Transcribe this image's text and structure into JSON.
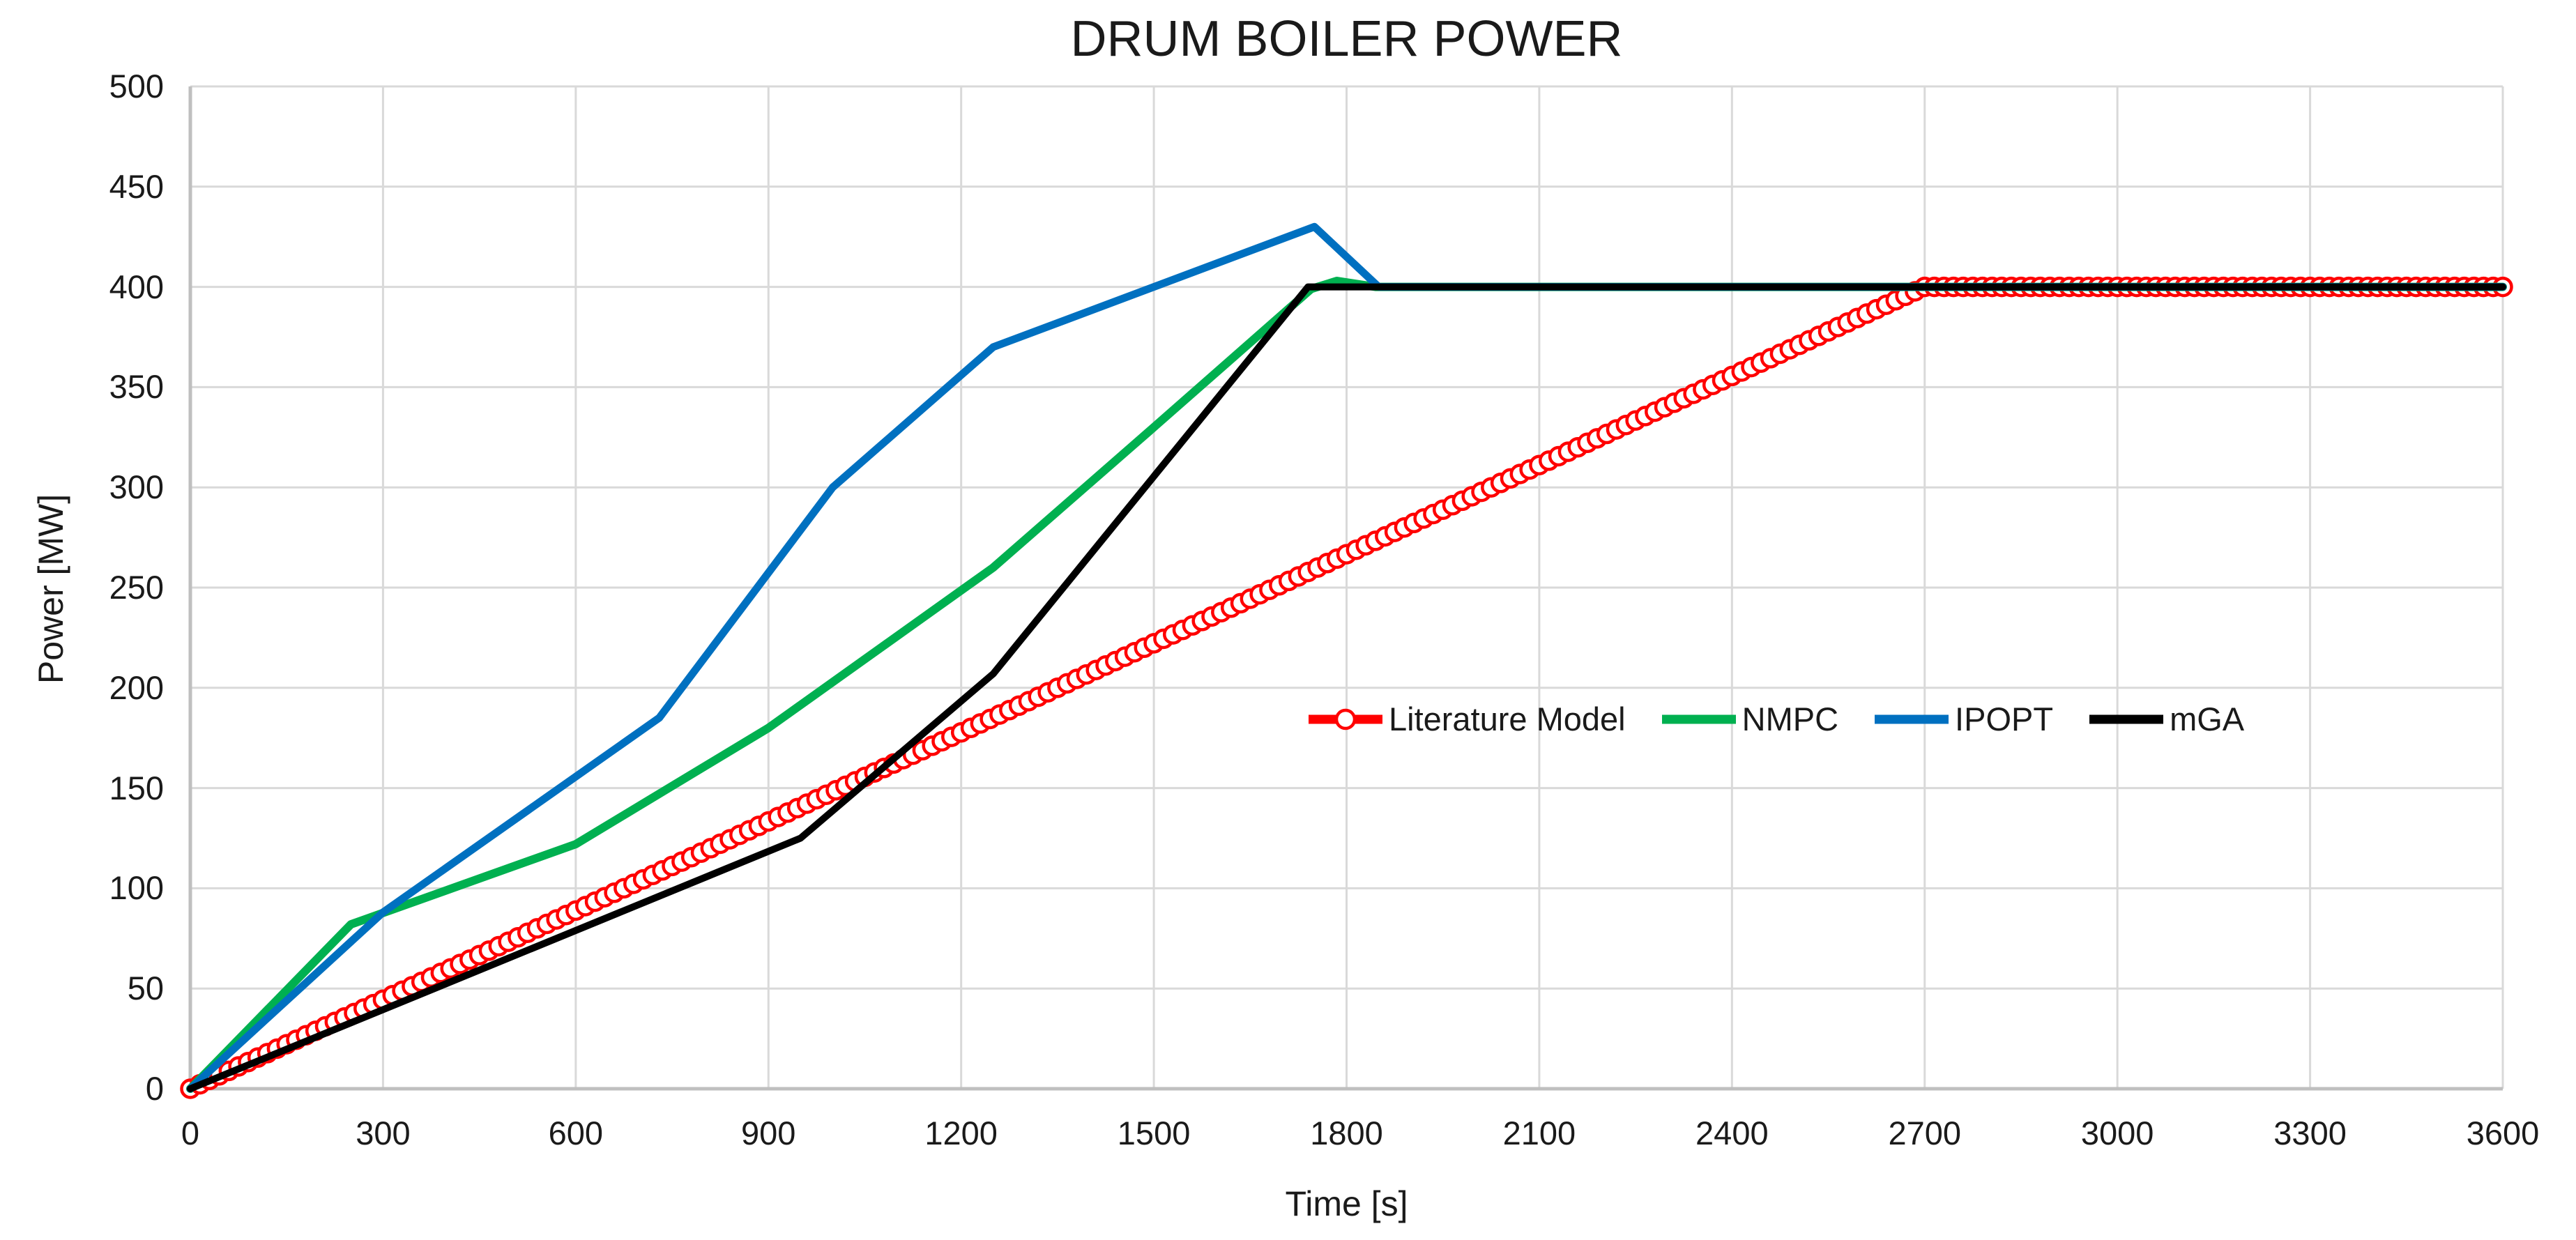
{
  "title": "DRUM BOILER POWER",
  "chart_data": {
    "type": "line",
    "title": "DRUM BOILER POWER",
    "xlabel": "Time [s]",
    "ylabel": "Power [MW]",
    "xlim": [
      0,
      3600
    ],
    "ylim": [
      0,
      500
    ],
    "x_ticks": [
      0,
      300,
      600,
      900,
      1200,
      1500,
      1800,
      2100,
      2400,
      2700,
      3000,
      3300,
      3600
    ],
    "y_ticks": [
      0,
      50,
      100,
      150,
      200,
      250,
      300,
      350,
      400,
      450,
      500
    ],
    "grid": true,
    "legend_position": "inside right-center",
    "colors": {
      "grid": "#D9D9D9",
      "axis": "#BFBFBF",
      "text": "#1A1A1A",
      "background": "#FFFFFF"
    },
    "series": [
      {
        "name": "Literature Model",
        "color": "#FF0000",
        "style": "line+open-circle-markers",
        "marker": "open-circle",
        "marker_interval_s": 15,
        "line_width": 7,
        "points": [
          [
            0,
            0
          ],
          [
            2700,
            400
          ],
          [
            3600,
            400
          ]
        ],
        "note": "linear ramp 0 to 400 MW over t=0..2700 s, then constant 400 MW until 3600 s"
      },
      {
        "name": "NMPC",
        "color": "#00B050",
        "style": "line",
        "line_width": 12,
        "points": [
          [
            0,
            0
          ],
          [
            250,
            82
          ],
          [
            600,
            122
          ],
          [
            900,
            180
          ],
          [
            1250,
            260
          ],
          [
            1500,
            330
          ],
          [
            1745,
            399
          ],
          [
            1785,
            403
          ],
          [
            1845,
            400
          ],
          [
            3600,
            400
          ]
        ]
      },
      {
        "name": "IPOPT",
        "color": "#0070C0",
        "style": "line",
        "line_width": 11,
        "points": [
          [
            0,
            0
          ],
          [
            300,
            88
          ],
          [
            730,
            185
          ],
          [
            1000,
            300
          ],
          [
            1250,
            370
          ],
          [
            1750,
            430
          ],
          [
            1850,
            400
          ],
          [
            3600,
            400
          ]
        ]
      },
      {
        "name": "mGA",
        "color": "#000000",
        "style": "line",
        "line_width": 10,
        "points": [
          [
            0,
            0
          ],
          [
            950,
            125
          ],
          [
            1250,
            207
          ],
          [
            1740,
            400
          ],
          [
            3600,
            400
          ]
        ]
      }
    ]
  }
}
